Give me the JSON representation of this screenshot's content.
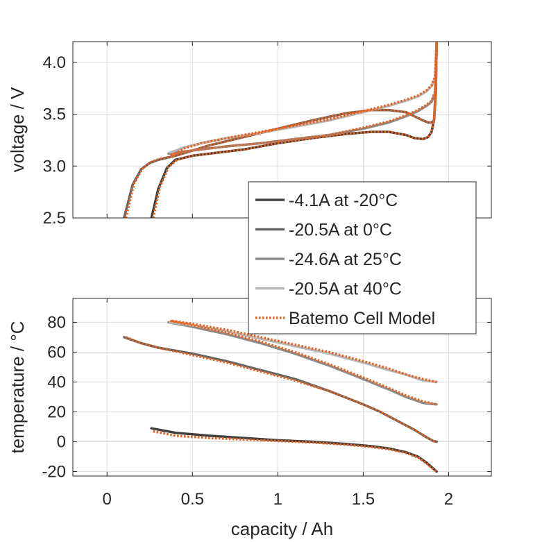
{
  "chart_data": [
    {
      "type": "line",
      "ylabel": "voltage / V",
      "xlabel": "",
      "xlim": [
        -0.2,
        2.25
      ],
      "ylim": [
        2.5,
        4.2
      ],
      "xticks": [
        0,
        0.5,
        1,
        1.5,
        2
      ],
      "yticks": [
        2.5,
        3.0,
        3.5,
        4.0
      ],
      "yticklabels": [
        "2.5",
        "3.0",
        "3.5",
        "4.0"
      ],
      "show_xticklabels": false,
      "grid": true,
      "series": [
        {
          "name": "-4.1A at -20°C",
          "color": "#404040",
          "style": "solid",
          "x": [
            0.26,
            0.3,
            0.35,
            0.4,
            0.5,
            0.6,
            0.8,
            1.0,
            1.2,
            1.4,
            1.55,
            1.65,
            1.75,
            1.8,
            1.85,
            1.88,
            1.9,
            1.915,
            1.925,
            1.93
          ],
          "y": [
            2.5,
            2.78,
            2.98,
            3.06,
            3.1,
            3.12,
            3.16,
            3.22,
            3.27,
            3.31,
            3.33,
            3.33,
            3.3,
            3.27,
            3.26,
            3.28,
            3.33,
            3.45,
            3.75,
            4.2
          ]
        },
        {
          "name": "-20.5A at 0°C",
          "color": "#646464",
          "style": "solid",
          "x": [
            0.1,
            0.15,
            0.2,
            0.25,
            0.3,
            0.4,
            0.5,
            0.6,
            0.8,
            1.0,
            1.2,
            1.4,
            1.55,
            1.65,
            1.75,
            1.8,
            1.85,
            1.88,
            1.9,
            1.915,
            1.925,
            1.93
          ],
          "y": [
            2.5,
            2.82,
            2.97,
            3.03,
            3.06,
            3.1,
            3.15,
            3.2,
            3.28,
            3.36,
            3.44,
            3.51,
            3.54,
            3.54,
            3.52,
            3.48,
            3.44,
            3.42,
            3.42,
            3.44,
            3.7,
            4.2
          ]
        },
        {
          "name": "-24.6A at 25°C",
          "color": "#8c8c8c",
          "style": "solid",
          "x": [
            0.36,
            0.45,
            0.55,
            0.7,
            0.9,
            1.1,
            1.3,
            1.5,
            1.65,
            1.75,
            1.82,
            1.87,
            1.9,
            1.92,
            1.93
          ],
          "y": [
            3.12,
            3.14,
            3.16,
            3.19,
            3.22,
            3.26,
            3.3,
            3.36,
            3.42,
            3.48,
            3.53,
            3.58,
            3.62,
            3.7,
            4.2
          ]
        },
        {
          "name": "-20.5A at 40°C",
          "color": "#b8b8b8",
          "style": "solid",
          "x": [
            0.37,
            0.45,
            0.55,
            0.7,
            0.9,
            1.1,
            1.3,
            1.5,
            1.65,
            1.75,
            1.82,
            1.87,
            1.9,
            1.92,
            1.93
          ],
          "y": [
            3.13,
            3.18,
            3.22,
            3.27,
            3.32,
            3.38,
            3.44,
            3.52,
            3.58,
            3.63,
            3.67,
            3.72,
            3.77,
            3.85,
            4.2
          ]
        },
        {
          "name": "Batemo Cell Model",
          "color": "#e8621e",
          "style": "dotted",
          "x": [
            0.27,
            0.31,
            0.36,
            0.41,
            0.5,
            0.6,
            0.8,
            1.0,
            1.2,
            1.4,
            1.55,
            1.65,
            1.75,
            1.8,
            1.85,
            1.88,
            1.9,
            1.915,
            1.925,
            1.93
          ],
          "y": [
            2.5,
            2.8,
            2.99,
            3.06,
            3.1,
            3.12,
            3.16,
            3.22,
            3.27,
            3.31,
            3.33,
            3.33,
            3.3,
            3.27,
            3.26,
            3.28,
            3.33,
            3.46,
            3.76,
            4.2
          ]
        },
        {
          "name": "",
          "color": "#e8621e",
          "style": "dotted",
          "x": [
            0.11,
            0.16,
            0.21,
            0.26,
            0.31,
            0.4,
            0.5,
            0.6,
            0.8,
            1.0,
            1.2,
            1.4,
            1.55,
            1.65,
            1.75,
            1.8,
            1.85,
            1.88,
            1.9,
            1.915,
            1.925,
            1.93
          ],
          "y": [
            2.5,
            2.84,
            2.98,
            3.04,
            3.07,
            3.1,
            3.15,
            3.2,
            3.28,
            3.36,
            3.44,
            3.51,
            3.54,
            3.54,
            3.52,
            3.48,
            3.44,
            3.42,
            3.42,
            3.44,
            3.7,
            4.2
          ]
        },
        {
          "name": "",
          "color": "#e8621e",
          "style": "dotted",
          "x": [
            0.37,
            0.45,
            0.55,
            0.7,
            0.9,
            1.1,
            1.3,
            1.5,
            1.65,
            1.75,
            1.82,
            1.87,
            1.9,
            1.92,
            1.93
          ],
          "y": [
            3.11,
            3.14,
            3.16,
            3.19,
            3.22,
            3.26,
            3.3,
            3.37,
            3.43,
            3.49,
            3.54,
            3.59,
            3.63,
            3.72,
            4.2
          ]
        },
        {
          "name": "",
          "color": "#e8621e",
          "style": "dotted",
          "x": [
            0.38,
            0.45,
            0.55,
            0.7,
            0.9,
            1.1,
            1.3,
            1.5,
            1.65,
            1.75,
            1.82,
            1.87,
            1.9,
            1.92,
            1.93
          ],
          "y": [
            3.1,
            3.17,
            3.22,
            3.27,
            3.33,
            3.39,
            3.45,
            3.53,
            3.59,
            3.64,
            3.68,
            3.73,
            3.78,
            3.86,
            4.2
          ]
        }
      ]
    },
    {
      "type": "line",
      "ylabel": "temperature / °C",
      "xlabel": "capacity / Ah",
      "xlim": [
        -0.2,
        2.25
      ],
      "ylim": [
        -23,
        96
      ],
      "xticks": [
        0,
        0.5,
        1,
        1.5,
        2
      ],
      "xticklabels": [
        "0",
        "0.5",
        "1",
        "1.5",
        "2"
      ],
      "yticks": [
        -20,
        0,
        20,
        40,
        60,
        80
      ],
      "yticklabels": [
        "-20",
        "0",
        "20",
        "40",
        "60",
        "80"
      ],
      "grid": true,
      "series": [
        {
          "name": "-4.1A at -20°C",
          "color": "#404040",
          "style": "solid",
          "x": [
            0.26,
            0.4,
            0.6,
            0.8,
            1.0,
            1.2,
            1.4,
            1.55,
            1.65,
            1.75,
            1.82,
            1.87,
            1.9,
            1.93
          ],
          "y": [
            9,
            6,
            4,
            2.5,
            1,
            0,
            -1.5,
            -3,
            -4.5,
            -7,
            -10,
            -14,
            -17,
            -20
          ]
        },
        {
          "name": "-20.5A at 0°C",
          "color": "#646464",
          "style": "solid",
          "x": [
            0.1,
            0.2,
            0.3,
            0.5,
            0.7,
            0.9,
            1.1,
            1.3,
            1.5,
            1.6,
            1.7,
            1.8,
            1.87,
            1.91,
            1.93
          ],
          "y": [
            70,
            66,
            63,
            59,
            54,
            48,
            42,
            34,
            25,
            20,
            14,
            8,
            3,
            0.5,
            0
          ]
        },
        {
          "name": "-24.6A at 25°C",
          "color": "#8c8c8c",
          "style": "solid",
          "x": [
            0.36,
            0.5,
            0.7,
            0.9,
            1.1,
            1.3,
            1.5,
            1.65,
            1.75,
            1.85,
            1.93
          ],
          "y": [
            80,
            77,
            72,
            66,
            59,
            51,
            42,
            35,
            30,
            26,
            25
          ]
        },
        {
          "name": "-20.5A at 40°C",
          "color": "#b8b8b8",
          "style": "solid",
          "x": [
            0.37,
            0.5,
            0.7,
            0.9,
            1.1,
            1.3,
            1.5,
            1.65,
            1.75,
            1.85,
            1.93
          ],
          "y": [
            80,
            78,
            74,
            69,
            64,
            59,
            53,
            48,
            45,
            41,
            40
          ]
        },
        {
          "name": "",
          "color": "#e8621e",
          "style": "dotted",
          "x": [
            0.27,
            0.4,
            0.6,
            0.8,
            1.0,
            1.2,
            1.4,
            1.55,
            1.65,
            1.75,
            1.82,
            1.87,
            1.9,
            1.93
          ],
          "y": [
            7,
            4,
            2.5,
            1.5,
            0.5,
            -0.5,
            -2,
            -3.5,
            -5,
            -7.5,
            -10.5,
            -14.5,
            -17.5,
            -20
          ]
        },
        {
          "name": "",
          "color": "#e8621e",
          "style": "dotted",
          "x": [
            0.11,
            0.2,
            0.3,
            0.5,
            0.7,
            0.9,
            1.1,
            1.3,
            1.5,
            1.6,
            1.7,
            1.8,
            1.87,
            1.91,
            1.93
          ],
          "y": [
            70,
            66,
            63,
            58,
            53,
            47,
            41,
            34,
            25,
            20,
            14,
            8,
            3,
            0.5,
            0
          ]
        },
        {
          "name": "",
          "color": "#e8621e",
          "style": "dotted",
          "x": [
            0.37,
            0.5,
            0.7,
            0.9,
            1.1,
            1.3,
            1.5,
            1.65,
            1.75,
            1.85,
            1.93
          ],
          "y": [
            81,
            78,
            73,
            67,
            60,
            52,
            43,
            36,
            31,
            27,
            25
          ]
        },
        {
          "name": "",
          "color": "#e8621e",
          "style": "dotted",
          "x": [
            0.38,
            0.5,
            0.7,
            0.9,
            1.1,
            1.3,
            1.5,
            1.65,
            1.75,
            1.85,
            1.93
          ],
          "y": [
            81,
            79,
            75,
            70,
            65,
            60,
            54,
            49,
            45,
            42,
            40
          ]
        }
      ]
    }
  ]
}
